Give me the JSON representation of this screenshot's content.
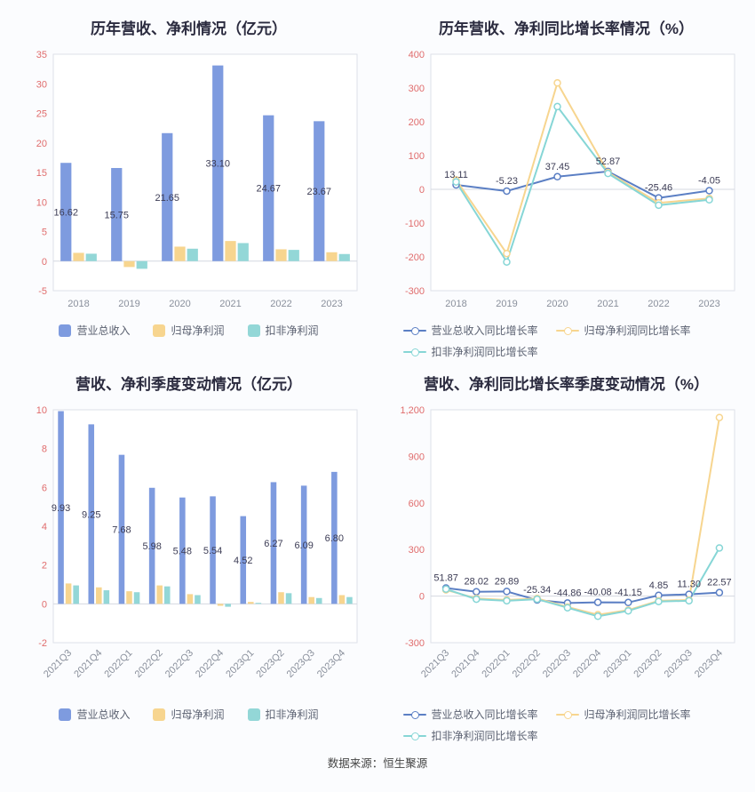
{
  "page": {
    "source_note": "数据来源：恒生聚源"
  },
  "style": {
    "y_tick_color": "#e06c6c",
    "x_tick_color": "#8a909c",
    "label_color": "#3c3c55",
    "plot_border": "#dde0e8",
    "zero_line": "#d4d8e0",
    "plot_bg": "#ffffff"
  },
  "chart_data": [
    {
      "id": "annual-bar",
      "type": "bar",
      "title": "历年营收、净利情况（亿元）",
      "categories": [
        "2018",
        "2019",
        "2020",
        "2021",
        "2022",
        "2023"
      ],
      "series": [
        {
          "name": "营业总收入",
          "color": "#7e9bdf",
          "values": [
            16.62,
            15.75,
            21.65,
            33.1,
            24.67,
            23.67
          ],
          "labels": [
            "16.62",
            "15.75",
            "21.65",
            "33.10",
            "24.67",
            "23.67"
          ]
        },
        {
          "name": "归母净利润",
          "color": "#f7d58f",
          "values": [
            1.4,
            -1.0,
            2.45,
            3.4,
            2.0,
            1.5
          ]
        },
        {
          "name": "扣非净利润",
          "color": "#93d7d7",
          "values": [
            1.25,
            -1.3,
            2.1,
            3.05,
            1.9,
            1.2
          ]
        }
      ],
      "ylim": [
        -5,
        35
      ],
      "yticks": [
        35,
        30,
        25,
        20,
        15,
        10,
        5,
        0,
        -5
      ],
      "legend_position": "bottom",
      "grid": false,
      "rotate_x_labels": false
    },
    {
      "id": "annual-growth",
      "type": "line",
      "title": "历年营收、净利同比增长率情况（%）",
      "categories": [
        "2018",
        "2019",
        "2020",
        "2021",
        "2022",
        "2023"
      ],
      "series": [
        {
          "name": "营业总收入同比增长率",
          "color": "#5b7fc4",
          "values": [
            13.11,
            -5.23,
            37.45,
            52.87,
            -25.46,
            -4.05
          ],
          "labels": [
            "13.11",
            "-5.23",
            "37.45",
            "52.87",
            "-25.46",
            "-4.05"
          ]
        },
        {
          "name": "归母净利润同比增长率",
          "color": "#f7d58f",
          "values": [
            28,
            -190,
            315,
            50,
            -40,
            -27
          ]
        },
        {
          "name": "扣非净利润同比增长率",
          "color": "#86d6d6",
          "values": [
            22,
            -215,
            245,
            47,
            -47,
            -31
          ]
        }
      ],
      "ylim": [
        -300,
        400
      ],
      "yticks": [
        400,
        300,
        200,
        100,
        0,
        -100,
        -200,
        -300
      ],
      "legend_position": "bottom",
      "grid": false,
      "rotate_x_labels": false
    },
    {
      "id": "quarterly-bar",
      "type": "bar",
      "title": "营收、净利季度变动情况（亿元）",
      "categories": [
        "2021Q3",
        "2021Q4",
        "2022Q1",
        "2022Q2",
        "2022Q3",
        "2022Q4",
        "2023Q1",
        "2023Q2",
        "2023Q3",
        "2023Q4"
      ],
      "series": [
        {
          "name": "营业总收入",
          "color": "#7e9bdf",
          "values": [
            9.93,
            9.25,
            7.68,
            5.98,
            5.48,
            5.54,
            4.52,
            6.27,
            6.09,
            6.8
          ],
          "labels": [
            "9.93",
            "9.25",
            "7.68",
            "5.98",
            "5.48",
            "5.54",
            "4.52",
            "6.27",
            "6.09",
            "6.80"
          ]
        },
        {
          "name": "归母净利润",
          "color": "#f7d58f",
          "values": [
            1.05,
            0.85,
            0.65,
            0.95,
            0.5,
            -0.1,
            0.1,
            0.6,
            0.35,
            0.45
          ]
        },
        {
          "name": "扣非净利润",
          "color": "#93d7d7",
          "values": [
            0.95,
            0.7,
            0.6,
            0.9,
            0.45,
            -0.15,
            0.05,
            0.55,
            0.3,
            0.35
          ]
        }
      ],
      "ylim": [
        -2,
        10
      ],
      "yticks": [
        10,
        8,
        6,
        4,
        2,
        0,
        -2
      ],
      "legend_position": "bottom",
      "grid": false,
      "rotate_x_labels": true
    },
    {
      "id": "quarterly-growth",
      "type": "line",
      "title": "营收、净利同比增长率季度变动情况（%）",
      "categories": [
        "2021Q3",
        "2021Q4",
        "2022Q1",
        "2022Q2",
        "2022Q3",
        "2022Q4",
        "2023Q1",
        "2023Q2",
        "2023Q3",
        "2023Q4"
      ],
      "series": [
        {
          "name": "营业总收入同比增长率",
          "color": "#5b7fc4",
          "values": [
            51.87,
            28.02,
            29.89,
            -25.34,
            -44.86,
            -40.08,
            -41.15,
            4.85,
            11.3,
            22.57
          ],
          "labels": [
            "51.87",
            "28.02",
            "29.89",
            "-25.34",
            "-44.86",
            "-40.08",
            "-41.15",
            "4.85",
            "11.30",
            "22.57"
          ]
        },
        {
          "name": "归母净利润同比增长率",
          "color": "#f7d58f",
          "values": [
            40,
            -15,
            -25,
            -15,
            -70,
            -120,
            -90,
            -30,
            -25,
            1150
          ]
        },
        {
          "name": "扣非净利润同比增长率",
          "color": "#86d6d6",
          "values": [
            45,
            -20,
            -30,
            -20,
            -75,
            -130,
            -95,
            -35,
            -30,
            310
          ]
        }
      ],
      "ylim": [
        -300,
        1200
      ],
      "yticks": [
        1200,
        900,
        600,
        300,
        0,
        -300
      ],
      "ytick_labels": [
        "1,200",
        "900",
        "600",
        "300",
        "0",
        "-300"
      ],
      "legend_position": "bottom",
      "grid": false,
      "rotate_x_labels": true
    }
  ]
}
